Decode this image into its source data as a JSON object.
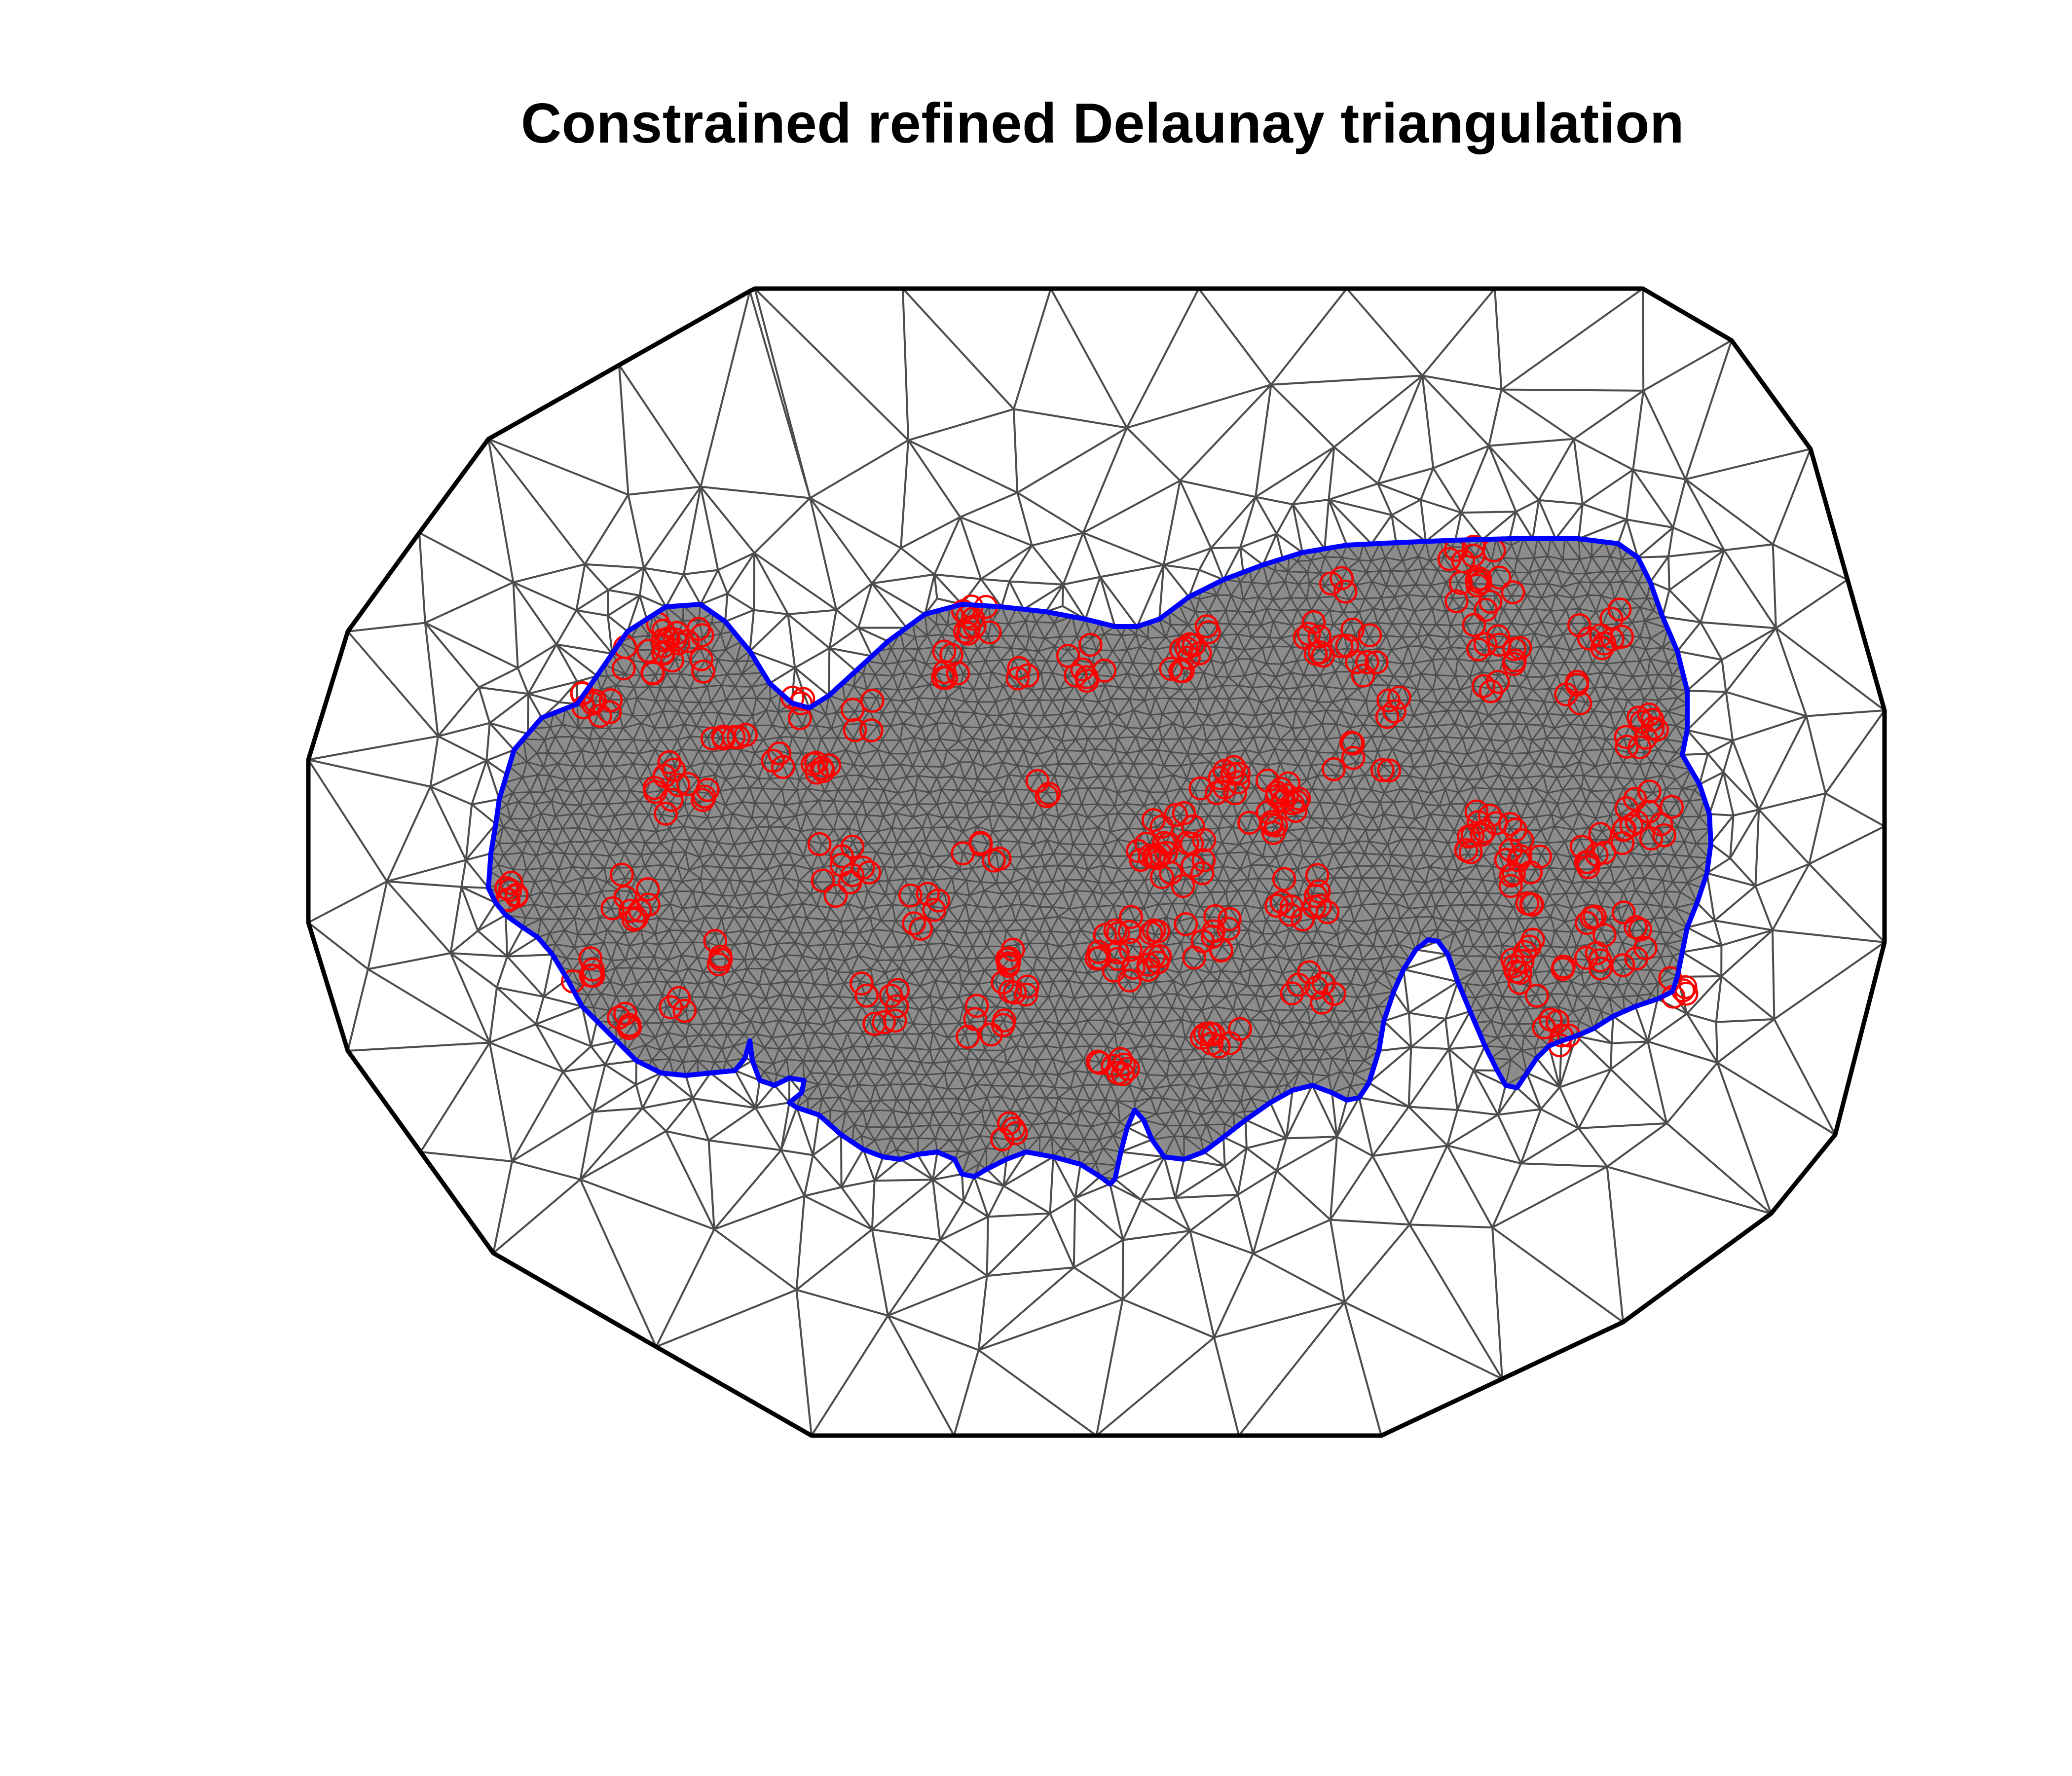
{
  "figure": {
    "title": "Constrained refined Delaunay triangulation"
  },
  "colors": {
    "outer_boundary": "#000000",
    "inner_boundary": "#0000ff",
    "mesh_edges": "#4d4d4d",
    "observation_points": "#ff0000",
    "background": "#ffffff"
  },
  "legend_semantics": {
    "mesh": "triangulation-edges",
    "inner": "constraint-boundary",
    "outer": "extension-boundary",
    "points": "observation-locations"
  }
}
